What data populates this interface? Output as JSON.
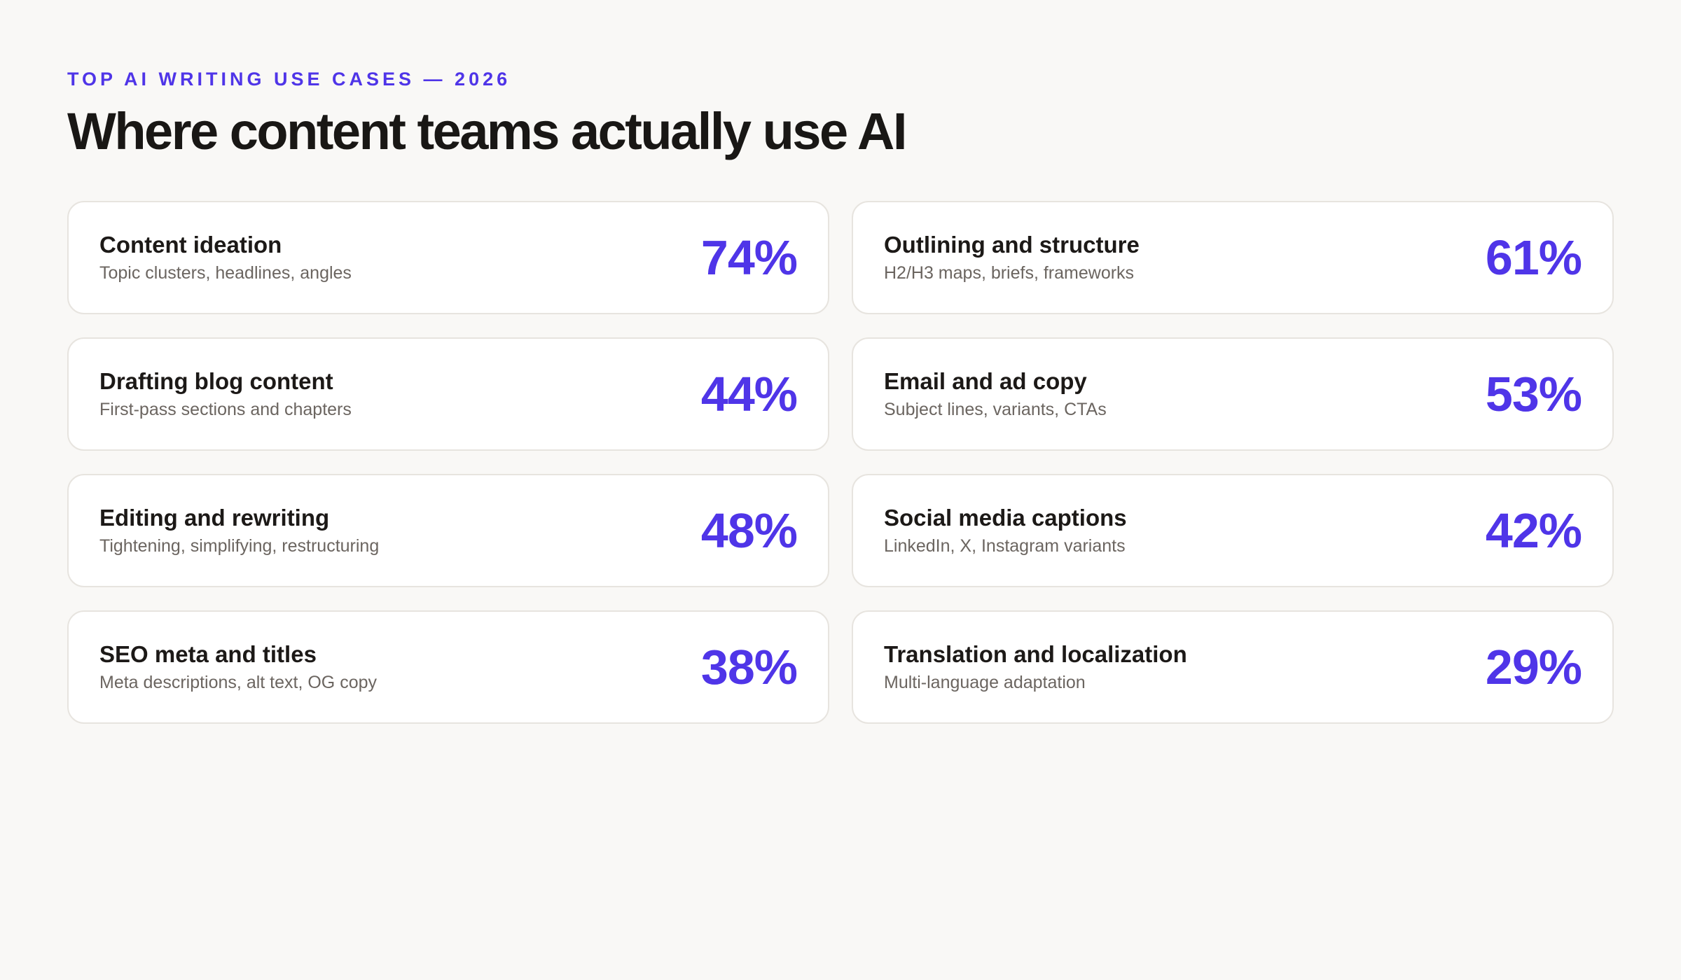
{
  "header": {
    "eyebrow": "TOP AI WRITING USE CASES — 2026",
    "title": "Where content teams actually use AI"
  },
  "colors": {
    "accent": "#4f35e8",
    "background": "#f9f8f6",
    "card": "#ffffff",
    "border": "#e7e4df"
  },
  "cards": [
    {
      "title": "Content ideation",
      "subtitle": "Topic clusters, headlines, angles",
      "value": "74%"
    },
    {
      "title": "Outlining and structure",
      "subtitle": "H2/H3 maps, briefs, frameworks",
      "value": "61%"
    },
    {
      "title": "Drafting blog content",
      "subtitle": "First-pass sections and chapters",
      "value": "44%"
    },
    {
      "title": "Email and ad copy",
      "subtitle": "Subject lines, variants, CTAs",
      "value": "53%"
    },
    {
      "title": "Editing and rewriting",
      "subtitle": "Tightening, simplifying, restructuring",
      "value": "48%"
    },
    {
      "title": "Social media captions",
      "subtitle": "LinkedIn, X, Instagram variants",
      "value": "42%"
    },
    {
      "title": "SEO meta and titles",
      "subtitle": "Meta descriptions, alt text, OG copy",
      "value": "38%"
    },
    {
      "title": "Translation and localization",
      "subtitle": "Multi-language adaptation",
      "value": "29%"
    }
  ]
}
